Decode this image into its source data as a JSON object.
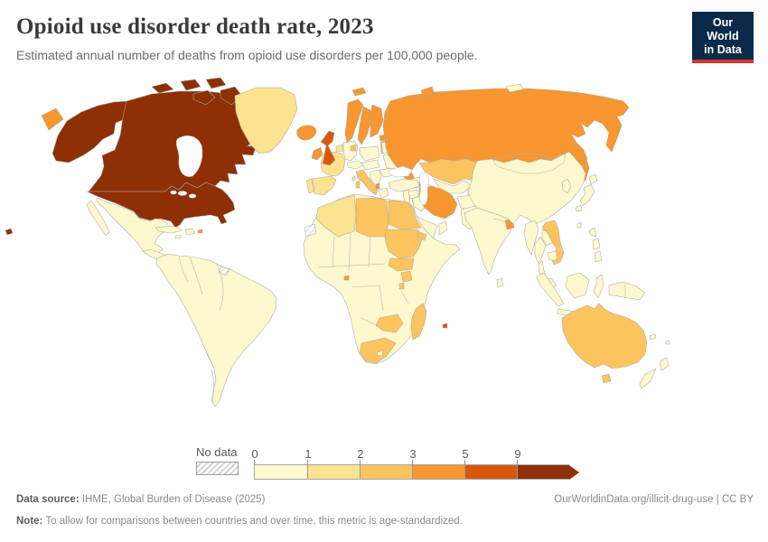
{
  "header": {
    "title": "Opioid use disorder death rate, 2023",
    "subtitle": "Estimated annual number of deaths from opioid use disorders per 100,000 people.",
    "logo_line1": "Our World",
    "logo_line2": "in Data",
    "logo_bg": "#0b2a4a",
    "logo_accent": "#d0382e"
  },
  "legend": {
    "no_data_label": "No data",
    "segments": [
      {
        "label": "0",
        "color": "#fdf8cd"
      },
      {
        "label": "1",
        "color": "#fbe38f"
      },
      {
        "label": "2",
        "color": "#fcc45f"
      },
      {
        "label": "3",
        "color": "#f8962f"
      },
      {
        "label": "5",
        "color": "#d9570d"
      },
      {
        "label": "9",
        "color": "#8e2f06"
      }
    ]
  },
  "map": {
    "bins": {
      "0-1": "#fdf8cd",
      "1-2": "#fbe38f",
      "2-3": "#fcc45f",
      "3-5": "#f8962f",
      "5-9": "#d9570d",
      "9+": "#8e2f06",
      "no-data": "hatch"
    },
    "regions": {
      "united-states": "9+",
      "canada": "9+",
      "greenland": "1-2",
      "mexico": "0-1",
      "central-america": "0-1",
      "cuba": "0-1",
      "hispaniola": "0-1",
      "jamaica": "0-1",
      "puerto-rico": "3-5",
      "south-america": "0-1",
      "french-guiana": "no-data",
      "iceland": "3-5",
      "portugal": "1-2",
      "spain": "1-2",
      "france": "1-2",
      "benelux": "1-2",
      "germany": "0-1",
      "alpine": "0-1",
      "italy": "2-3",
      "united-kingdom": "5-9",
      "ireland": "3-5",
      "norway": "3-5",
      "sweden": "3-5",
      "finland": "3-5",
      "denmark": "2-3",
      "estonia": "3-5",
      "baltics": "2-3",
      "poland": "0-1",
      "central-europe": "0-1",
      "belarus": "0-1",
      "ukraine": "0-1",
      "romania": "0-1",
      "balkans": "0-1",
      "albania": "3-5",
      "greece": "0-1",
      "svalbard": "3-5",
      "novaya-zemlya": "3-5",
      "severnaya-zemlya": "0-1",
      "russia": "3-5",
      "sakhalin": "3-5",
      "kazakhstan": "2-3",
      "uzbekistan": "0-1",
      "turkmenistan": "0-1",
      "kyrgyzstan-tajikistan": "0-1",
      "georgia": "0-1",
      "armenia": "0-1",
      "azerbaijan": "3-5",
      "turkey": "0-1",
      "levant": "0-1",
      "syria": "0-1",
      "iraq": "0-1",
      "iran": "3-5",
      "afghanistan": "0-1",
      "pakistan": "0-1",
      "saudi-arabia": "0-1",
      "oman": "0-1",
      "india": "0-1",
      "bangladesh": "3-5",
      "sri-lanka": "0-1",
      "china": "0-1",
      "korea": "0-1",
      "japan": "0-1",
      "taiwan": "0-1",
      "myanmar": "0-1",
      "thailand": "0-1",
      "laos": "0-1",
      "vietnam": "2-3",
      "cambodia": "0-1",
      "malaysia": "0-1",
      "philippines": "0-1",
      "indonesia": "0-1",
      "new-guinea": "0-1",
      "africa": "0-1",
      "western-sahara": "no-data",
      "algeria": "1-2",
      "libya": "2-3",
      "egypt": "2-3",
      "sudan": "2-3",
      "eritrea": "2-3",
      "south-sudan": "2-3",
      "uganda": "2-3",
      "rwanda-burundi": "2-3",
      "equatorial-guinea": "3-5",
      "zambia": "2-3",
      "south-africa": "2-3",
      "lesotho": "0-1",
      "madagascar": "2-3",
      "mauritius": "5-9",
      "australia": "2-3",
      "new-zealand": "0-1",
      "pacific-islands": "0-1"
    }
  },
  "footer": {
    "source_label": "Data source:",
    "source_text": " IHME, Global Burden of Disease (2025)",
    "link_text": "OurWorldinData.org/illicit-drug-use | CC BY",
    "note_label": "Note:",
    "note_text": " To allow for comparisons between countries and over time, this metric is age-standardized."
  },
  "chart_data": {
    "type": "heatmap",
    "subtype": "choropleth-world-map",
    "title": "Opioid use disorder death rate, 2023",
    "subtitle": "Estimated annual number of deaths from opioid use disorders per 100,000 people.",
    "unit": "deaths per 100,000 people (age-standardized)",
    "year": 2023,
    "legend_thresholds": [
      0,
      1,
      2,
      3,
      5,
      9
    ],
    "legend_colors": [
      "#fdf8cd",
      "#fbe38f",
      "#fcc45f",
      "#f8962f",
      "#d9570d",
      "#8e2f06"
    ],
    "legend_open_ended_above": 9,
    "no_data_style": "gray diagonal hatch",
    "values_by_bin": {
      "9_plus": [
        "United States",
        "Canada"
      ],
      "5_to_9": [
        "United Kingdom",
        "Mauritius"
      ],
      "3_to_5": [
        "Russia",
        "Norway",
        "Sweden",
        "Finland",
        "Iceland",
        "Ireland",
        "Estonia",
        "Albania",
        "Azerbaijan",
        "Iran",
        "Bangladesh",
        "Puerto Rico",
        "Equatorial Guinea"
      ],
      "2_to_3": [
        "Australia",
        "Kazakhstan",
        "Libya",
        "Egypt",
        "Sudan",
        "South Sudan",
        "Uganda",
        "Zambia",
        "South Africa",
        "Madagascar",
        "Vietnam",
        "Italy",
        "Denmark",
        "Latvia",
        "Lithuania"
      ],
      "1_to_2": [
        "Greenland",
        "Algeria",
        "France",
        "Spain",
        "Portugal",
        "Benelux"
      ],
      "0_to_1": [
        "Mexico",
        "Central America",
        "South America",
        "most of Sub-Saharan Africa",
        "Turkey",
        "China",
        "India",
        "Mongolia",
        "Japan",
        "Southeast Asia",
        "Indonesia",
        "New Zealand",
        "Eastern Europe"
      ],
      "no_data": [
        "French Guiana",
        "Western Sahara"
      ]
    }
  }
}
